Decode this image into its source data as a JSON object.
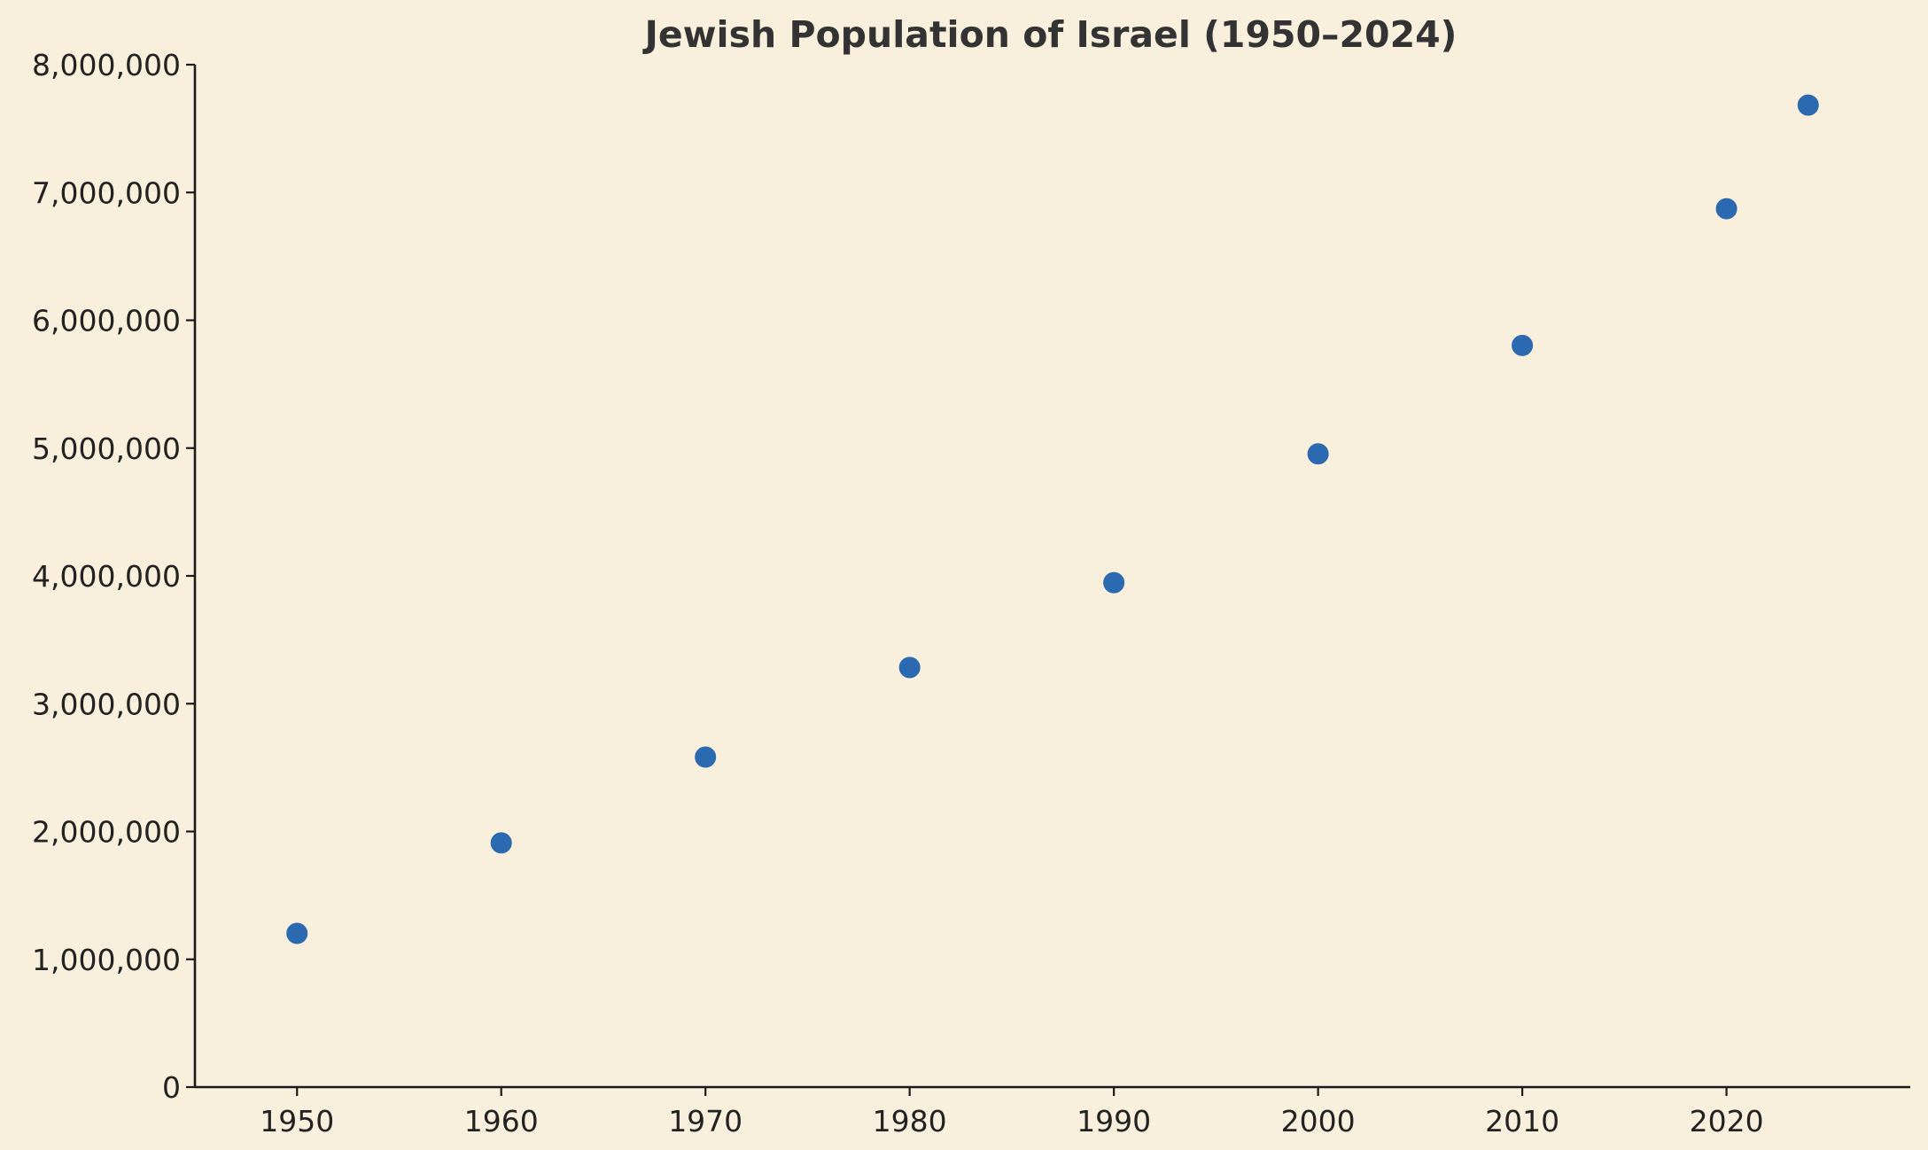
{
  "chart_data": {
    "type": "scatter",
    "title": "Jewish Population of Israel (1950–2024)",
    "xlabel": "",
    "ylabel": "",
    "xlim": [
      1945,
      2029
    ],
    "ylim": [
      0,
      8000000
    ],
    "grid": false,
    "legend": "none",
    "x_ticks": [
      1950,
      1960,
      1970,
      1980,
      1990,
      2000,
      2010,
      2020
    ],
    "x_tick_labels": [
      "1950",
      "1960",
      "1970",
      "1980",
      "1990",
      "2000",
      "2010",
      "2020"
    ],
    "y_ticks": [
      0,
      1000000,
      2000000,
      3000000,
      4000000,
      5000000,
      6000000,
      7000000,
      8000000
    ],
    "y_tick_labels": [
      "0",
      "1,000,000",
      "2,000,000",
      "3,000,000",
      "4,000,000",
      "5,000,000",
      "6,000,000",
      "7,000,000",
      "8,000,000"
    ],
    "series": [
      {
        "name": "Jewish population",
        "color": "#2b69b0",
        "x": [
          1950,
          1960,
          1970,
          1980,
          1990,
          2000,
          2010,
          2020,
          2024
        ],
        "y": [
          1203000,
          1911000,
          2582000,
          3283000,
          3947000,
          4955000,
          5803000,
          6873000,
          7684000
        ]
      }
    ]
  },
  "colors": {
    "background": "#f8f0dc",
    "axis": "#1a1a1a",
    "title": "#333333",
    "marker": "#2b69b0"
  }
}
